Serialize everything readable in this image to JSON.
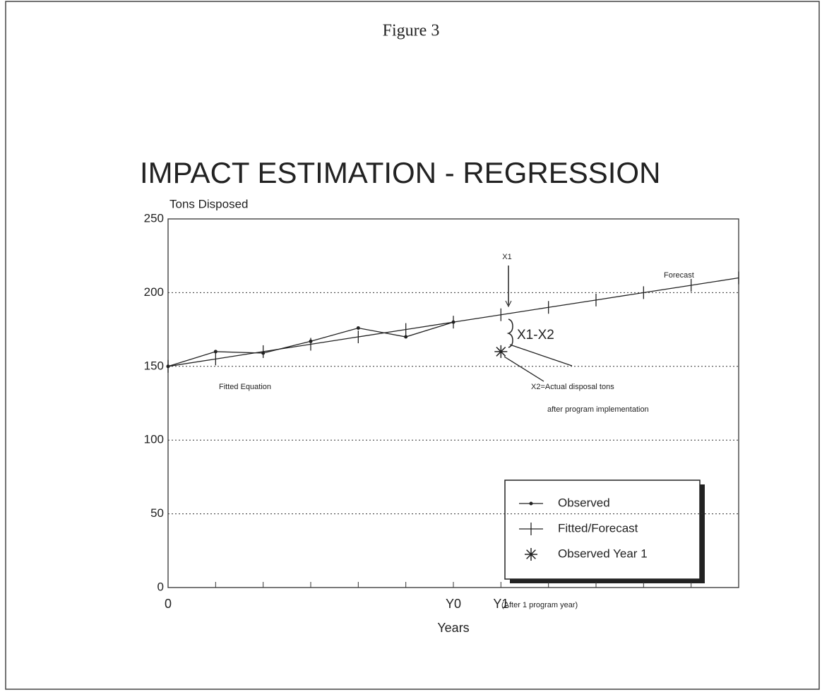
{
  "chart_data": {
    "type": "line",
    "figure_label": "Figure 3",
    "title": "IMPACT ESTIMATION - REGRESSION",
    "y_label": "Tons Disposed",
    "x_label": "Years",
    "x_note": "(After 1 program year)",
    "categories": [
      "0",
      null,
      null,
      null,
      null,
      null,
      "Y0",
      "Y1",
      null,
      null,
      null,
      null,
      null
    ],
    "series": [
      {
        "name": "Observed",
        "color": "#222",
        "marker": "dot",
        "values": [
          150,
          160,
          159,
          167,
          176,
          170,
          180,
          null,
          null,
          null,
          null,
          null,
          null
        ]
      },
      {
        "name": "Fitted/Forecast",
        "color": "#222",
        "marker": "tick",
        "values": [
          150,
          155,
          160,
          165,
          170,
          175,
          180,
          185,
          190,
          195,
          200,
          205,
          210
        ]
      },
      {
        "name": "Observed Year 1",
        "color": "#222",
        "marker": "star",
        "values": [
          null,
          null,
          null,
          null,
          null,
          null,
          null,
          160,
          null,
          null,
          null,
          null,
          null
        ]
      }
    ],
    "ylim": [
      0,
      250
    ],
    "yticks": [
      0,
      50,
      100,
      150,
      200,
      250
    ],
    "grid": true,
    "legend": "lower right",
    "annotations": [
      "X1",
      "Forecast",
      "X1-X2",
      "Fitted Equation",
      "X2=Actual disposal tons",
      "after program implementation"
    ]
  }
}
